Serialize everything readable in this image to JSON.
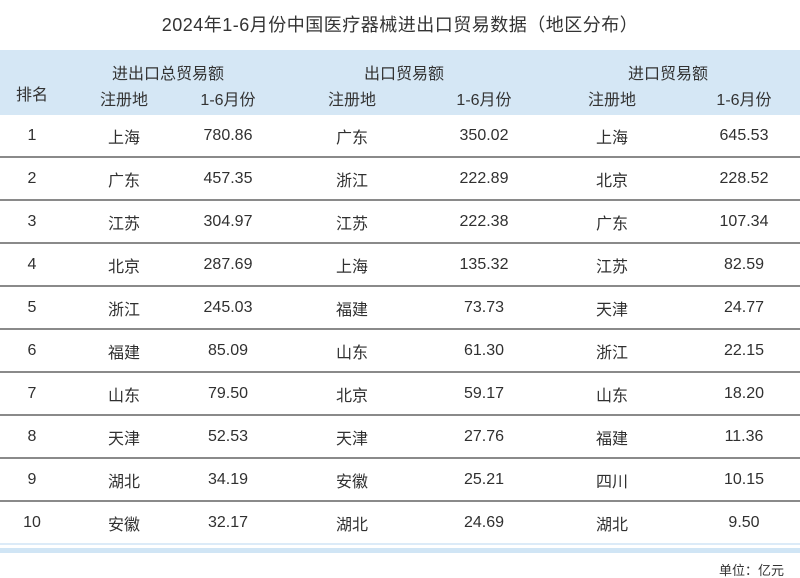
{
  "title": "2024年1-6月份中国医疗器械进出口贸易数据（地区分布）",
  "unit_note": "单位：亿元",
  "colors": {
    "header_bg": "#d5e7f5",
    "row_divider": "#8a8a8a",
    "bottom_line": "#dcebf8",
    "bottom_strip": "#d0e5f5",
    "text": "#303030"
  },
  "table": {
    "rank_header": "排名",
    "groups": [
      {
        "label": "进出口总贸易额",
        "sub": [
          "注册地",
          "1-6月份"
        ]
      },
      {
        "label": "出口贸易额",
        "sub": [
          "注册地",
          "1-6月份"
        ]
      },
      {
        "label": "进口贸易额",
        "sub": [
          "注册地",
          "1-6月份"
        ]
      }
    ]
  },
  "chart_data": {
    "type": "table",
    "title": "2024年1-6月份中国医疗器械进出口贸易数据（地区分布）",
    "unit": "亿元",
    "columns": [
      "排名",
      "进出口总贸易额-注册地",
      "进出口总贸易额-1-6月份",
      "出口贸易额-注册地",
      "出口贸易额-1-6月份",
      "进口贸易额-注册地",
      "进口贸易额-1-6月份"
    ],
    "rows": [
      [
        "1",
        "上海",
        "780.86",
        "广东",
        "350.02",
        "上海",
        "645.53"
      ],
      [
        "2",
        "广东",
        "457.35",
        "浙江",
        "222.89",
        "北京",
        "228.52"
      ],
      [
        "3",
        "江苏",
        "304.97",
        "江苏",
        "222.38",
        "广东",
        "107.34"
      ],
      [
        "4",
        "北京",
        "287.69",
        "上海",
        "135.32",
        "江苏",
        "82.59"
      ],
      [
        "5",
        "浙江",
        "245.03",
        "福建",
        "73.73",
        "天津",
        "24.77"
      ],
      [
        "6",
        "福建",
        "85.09",
        "山东",
        "61.30",
        "浙江",
        "22.15"
      ],
      [
        "7",
        "山东",
        "79.50",
        "北京",
        "59.17",
        "山东",
        "18.20"
      ],
      [
        "8",
        "天津",
        "52.53",
        "天津",
        "27.76",
        "福建",
        "11.36"
      ],
      [
        "9",
        "湖北",
        "34.19",
        "安徽",
        "25.21",
        "四川",
        "10.15"
      ],
      [
        "10",
        "安徽",
        "32.17",
        "湖北",
        "24.69",
        "湖北",
        "9.50"
      ]
    ]
  }
}
